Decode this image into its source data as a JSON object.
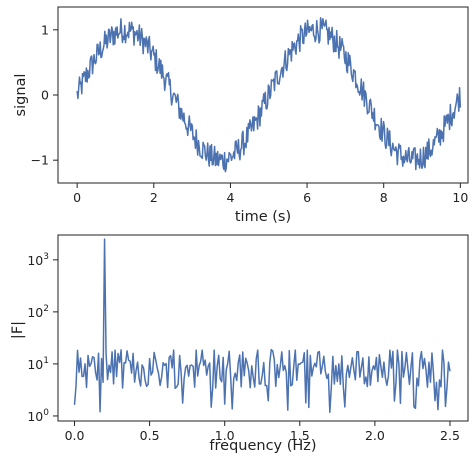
{
  "chart_data": [
    {
      "type": "line",
      "xlabel": "time (s)",
      "ylabel": "signal",
      "xlim": [
        -0.5,
        10.2
      ],
      "ylim": [
        -1.35,
        1.35
      ],
      "x_ticks": [
        0,
        2,
        4,
        6,
        8,
        10
      ],
      "x_tick_labels": [
        "0",
        "2",
        "4",
        "6",
        "8",
        "10"
      ],
      "y_ticks": [
        -1,
        0,
        1
      ],
      "y_tick_labels": [
        "−1",
        "0",
        "1"
      ],
      "grid": false,
      "line_color": "#4c72b0",
      "series": [
        {
          "description_of_shape": "noisy sine wave, period 5 s, amplitude 1, noise about ±0.2",
          "x_start": 0,
          "x_end": 10,
          "num_points": 500,
          "amplitude": 1,
          "frequency_hz": 0.2,
          "noise_amplitude": 0.2
        }
      ]
    },
    {
      "type": "line",
      "xlabel": "frequency (Hz)",
      "ylabel": "|F|",
      "xlim": [
        -0.11,
        2.62
      ],
      "yscale": "log",
      "ylim": [
        0.8,
        3000
      ],
      "x_ticks": [
        0,
        0.5,
        1,
        1.5,
        2,
        2.5
      ],
      "x_tick_labels": [
        "0.0",
        "0.5",
        "1.0",
        "1.5",
        "2.0",
        "2.5"
      ],
      "y_ticks": [
        1,
        10,
        100,
        1000
      ],
      "y_tick_bases": [
        "10",
        "10",
        "10",
        "10"
      ],
      "y_tick_exponents": [
        "0",
        "1",
        "2",
        "3"
      ],
      "grid": false,
      "line_color": "#4c72b0",
      "series": [
        {
          "x_start": 0,
          "x_end": 2.5,
          "num_points": 251,
          "baseline_typical": 8,
          "peak_x": 0.2,
          "peak_y": 2500
        }
      ]
    }
  ]
}
